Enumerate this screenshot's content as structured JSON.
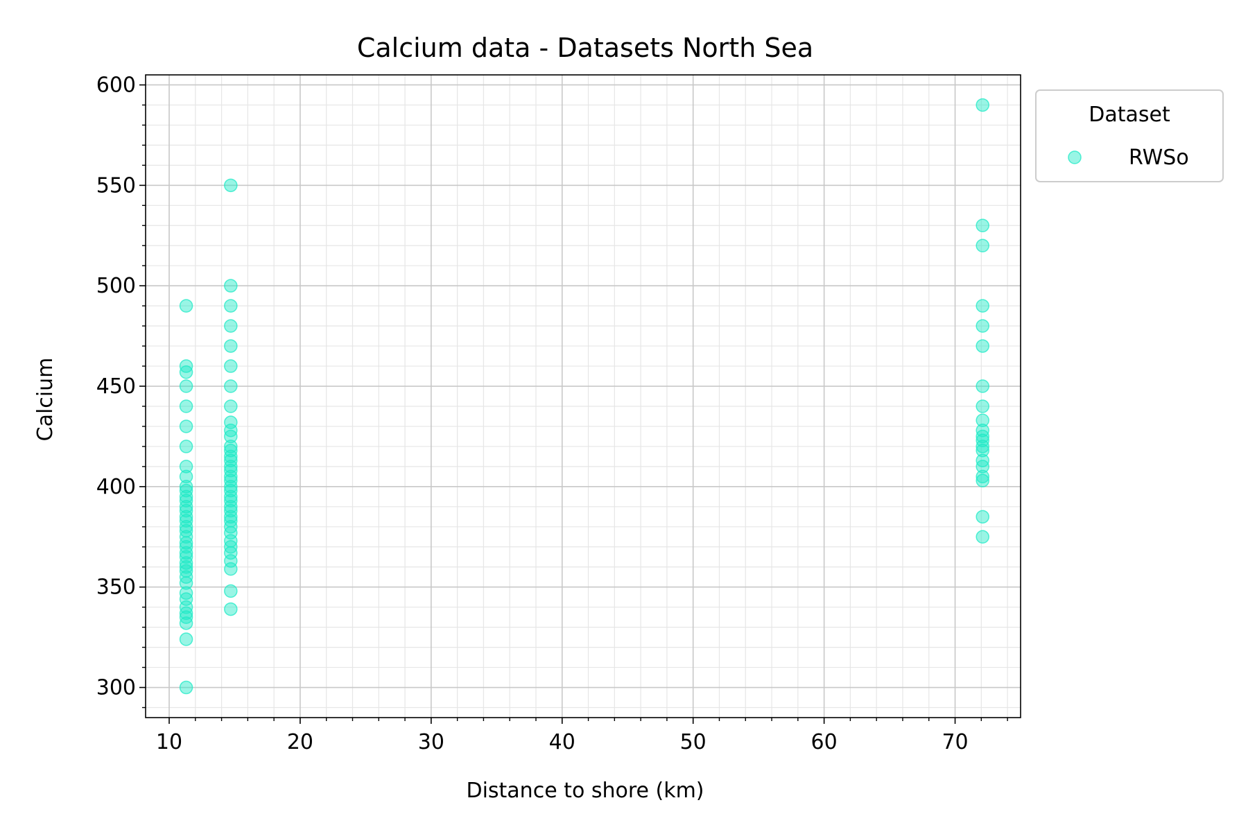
{
  "chart_data": {
    "type": "scatter",
    "title": "Calcium data - Datasets North Sea",
    "xlabel": "Distance to shore (km)",
    "ylabel": "Calcium",
    "xlim": [
      8.2,
      75
    ],
    "ylim": [
      285,
      605
    ],
    "xticks": [
      10,
      20,
      30,
      40,
      50,
      60,
      70
    ],
    "yticks": [
      300,
      350,
      400,
      450,
      500,
      550,
      600
    ],
    "grid": true,
    "legend": {
      "title": "Dataset",
      "placement": "outside-upper-right"
    },
    "series": [
      {
        "name": "RWSo",
        "color": "#1de9c6",
        "points": [
          {
            "x": 11.3,
            "y": 300
          },
          {
            "x": 11.3,
            "y": 324
          },
          {
            "x": 11.3,
            "y": 332
          },
          {
            "x": 11.3,
            "y": 335
          },
          {
            "x": 11.3,
            "y": 337
          },
          {
            "x": 11.3,
            "y": 340
          },
          {
            "x": 11.3,
            "y": 344
          },
          {
            "x": 11.3,
            "y": 347
          },
          {
            "x": 11.3,
            "y": 352
          },
          {
            "x": 11.3,
            "y": 355
          },
          {
            "x": 11.3,
            "y": 358
          },
          {
            "x": 11.3,
            "y": 360
          },
          {
            "x": 11.3,
            "y": 362
          },
          {
            "x": 11.3,
            "y": 365
          },
          {
            "x": 11.3,
            "y": 367
          },
          {
            "x": 11.3,
            "y": 370
          },
          {
            "x": 11.3,
            "y": 372
          },
          {
            "x": 11.3,
            "y": 375
          },
          {
            "x": 11.3,
            "y": 378
          },
          {
            "x": 11.3,
            "y": 380
          },
          {
            "x": 11.3,
            "y": 383
          },
          {
            "x": 11.3,
            "y": 385
          },
          {
            "x": 11.3,
            "y": 388
          },
          {
            "x": 11.3,
            "y": 390
          },
          {
            "x": 11.3,
            "y": 393
          },
          {
            "x": 11.3,
            "y": 395
          },
          {
            "x": 11.3,
            "y": 398
          },
          {
            "x": 11.3,
            "y": 400
          },
          {
            "x": 11.3,
            "y": 405
          },
          {
            "x": 11.3,
            "y": 410
          },
          {
            "x": 11.3,
            "y": 420
          },
          {
            "x": 11.3,
            "y": 430
          },
          {
            "x": 11.3,
            "y": 440
          },
          {
            "x": 11.3,
            "y": 450
          },
          {
            "x": 11.3,
            "y": 457
          },
          {
            "x": 11.3,
            "y": 460
          },
          {
            "x": 11.3,
            "y": 490
          },
          {
            "x": 14.7,
            "y": 339
          },
          {
            "x": 14.7,
            "y": 348
          },
          {
            "x": 14.7,
            "y": 359
          },
          {
            "x": 14.7,
            "y": 363
          },
          {
            "x": 14.7,
            "y": 367
          },
          {
            "x": 14.7,
            "y": 370
          },
          {
            "x": 14.7,
            "y": 373
          },
          {
            "x": 14.7,
            "y": 377
          },
          {
            "x": 14.7,
            "y": 380
          },
          {
            "x": 14.7,
            "y": 383
          },
          {
            "x": 14.7,
            "y": 385
          },
          {
            "x": 14.7,
            "y": 388
          },
          {
            "x": 14.7,
            "y": 390
          },
          {
            "x": 14.7,
            "y": 393
          },
          {
            "x": 14.7,
            "y": 395
          },
          {
            "x": 14.7,
            "y": 398
          },
          {
            "x": 14.7,
            "y": 400
          },
          {
            "x": 14.7,
            "y": 403
          },
          {
            "x": 14.7,
            "y": 405
          },
          {
            "x": 14.7,
            "y": 408
          },
          {
            "x": 14.7,
            "y": 410
          },
          {
            "x": 14.7,
            "y": 413
          },
          {
            "x": 14.7,
            "y": 415
          },
          {
            "x": 14.7,
            "y": 418
          },
          {
            "x": 14.7,
            "y": 420
          },
          {
            "x": 14.7,
            "y": 425
          },
          {
            "x": 14.7,
            "y": 428
          },
          {
            "x": 14.7,
            "y": 432
          },
          {
            "x": 14.7,
            "y": 440
          },
          {
            "x": 14.7,
            "y": 450
          },
          {
            "x": 14.7,
            "y": 460
          },
          {
            "x": 14.7,
            "y": 470
          },
          {
            "x": 14.7,
            "y": 480
          },
          {
            "x": 14.7,
            "y": 490
          },
          {
            "x": 14.7,
            "y": 500
          },
          {
            "x": 14.7,
            "y": 550
          },
          {
            "x": 72.1,
            "y": 375
          },
          {
            "x": 72.1,
            "y": 385
          },
          {
            "x": 72.1,
            "y": 403
          },
          {
            "x": 72.1,
            "y": 405
          },
          {
            "x": 72.1,
            "y": 410
          },
          {
            "x": 72.1,
            "y": 413
          },
          {
            "x": 72.1,
            "y": 418
          },
          {
            "x": 72.1,
            "y": 420
          },
          {
            "x": 72.1,
            "y": 423
          },
          {
            "x": 72.1,
            "y": 425
          },
          {
            "x": 72.1,
            "y": 428
          },
          {
            "x": 72.1,
            "y": 433
          },
          {
            "x": 72.1,
            "y": 440
          },
          {
            "x": 72.1,
            "y": 450
          },
          {
            "x": 72.1,
            "y": 470
          },
          {
            "x": 72.1,
            "y": 480
          },
          {
            "x": 72.1,
            "y": 490
          },
          {
            "x": 72.1,
            "y": 520
          },
          {
            "x": 72.1,
            "y": 530
          },
          {
            "x": 72.1,
            "y": 590
          }
        ]
      }
    ]
  }
}
